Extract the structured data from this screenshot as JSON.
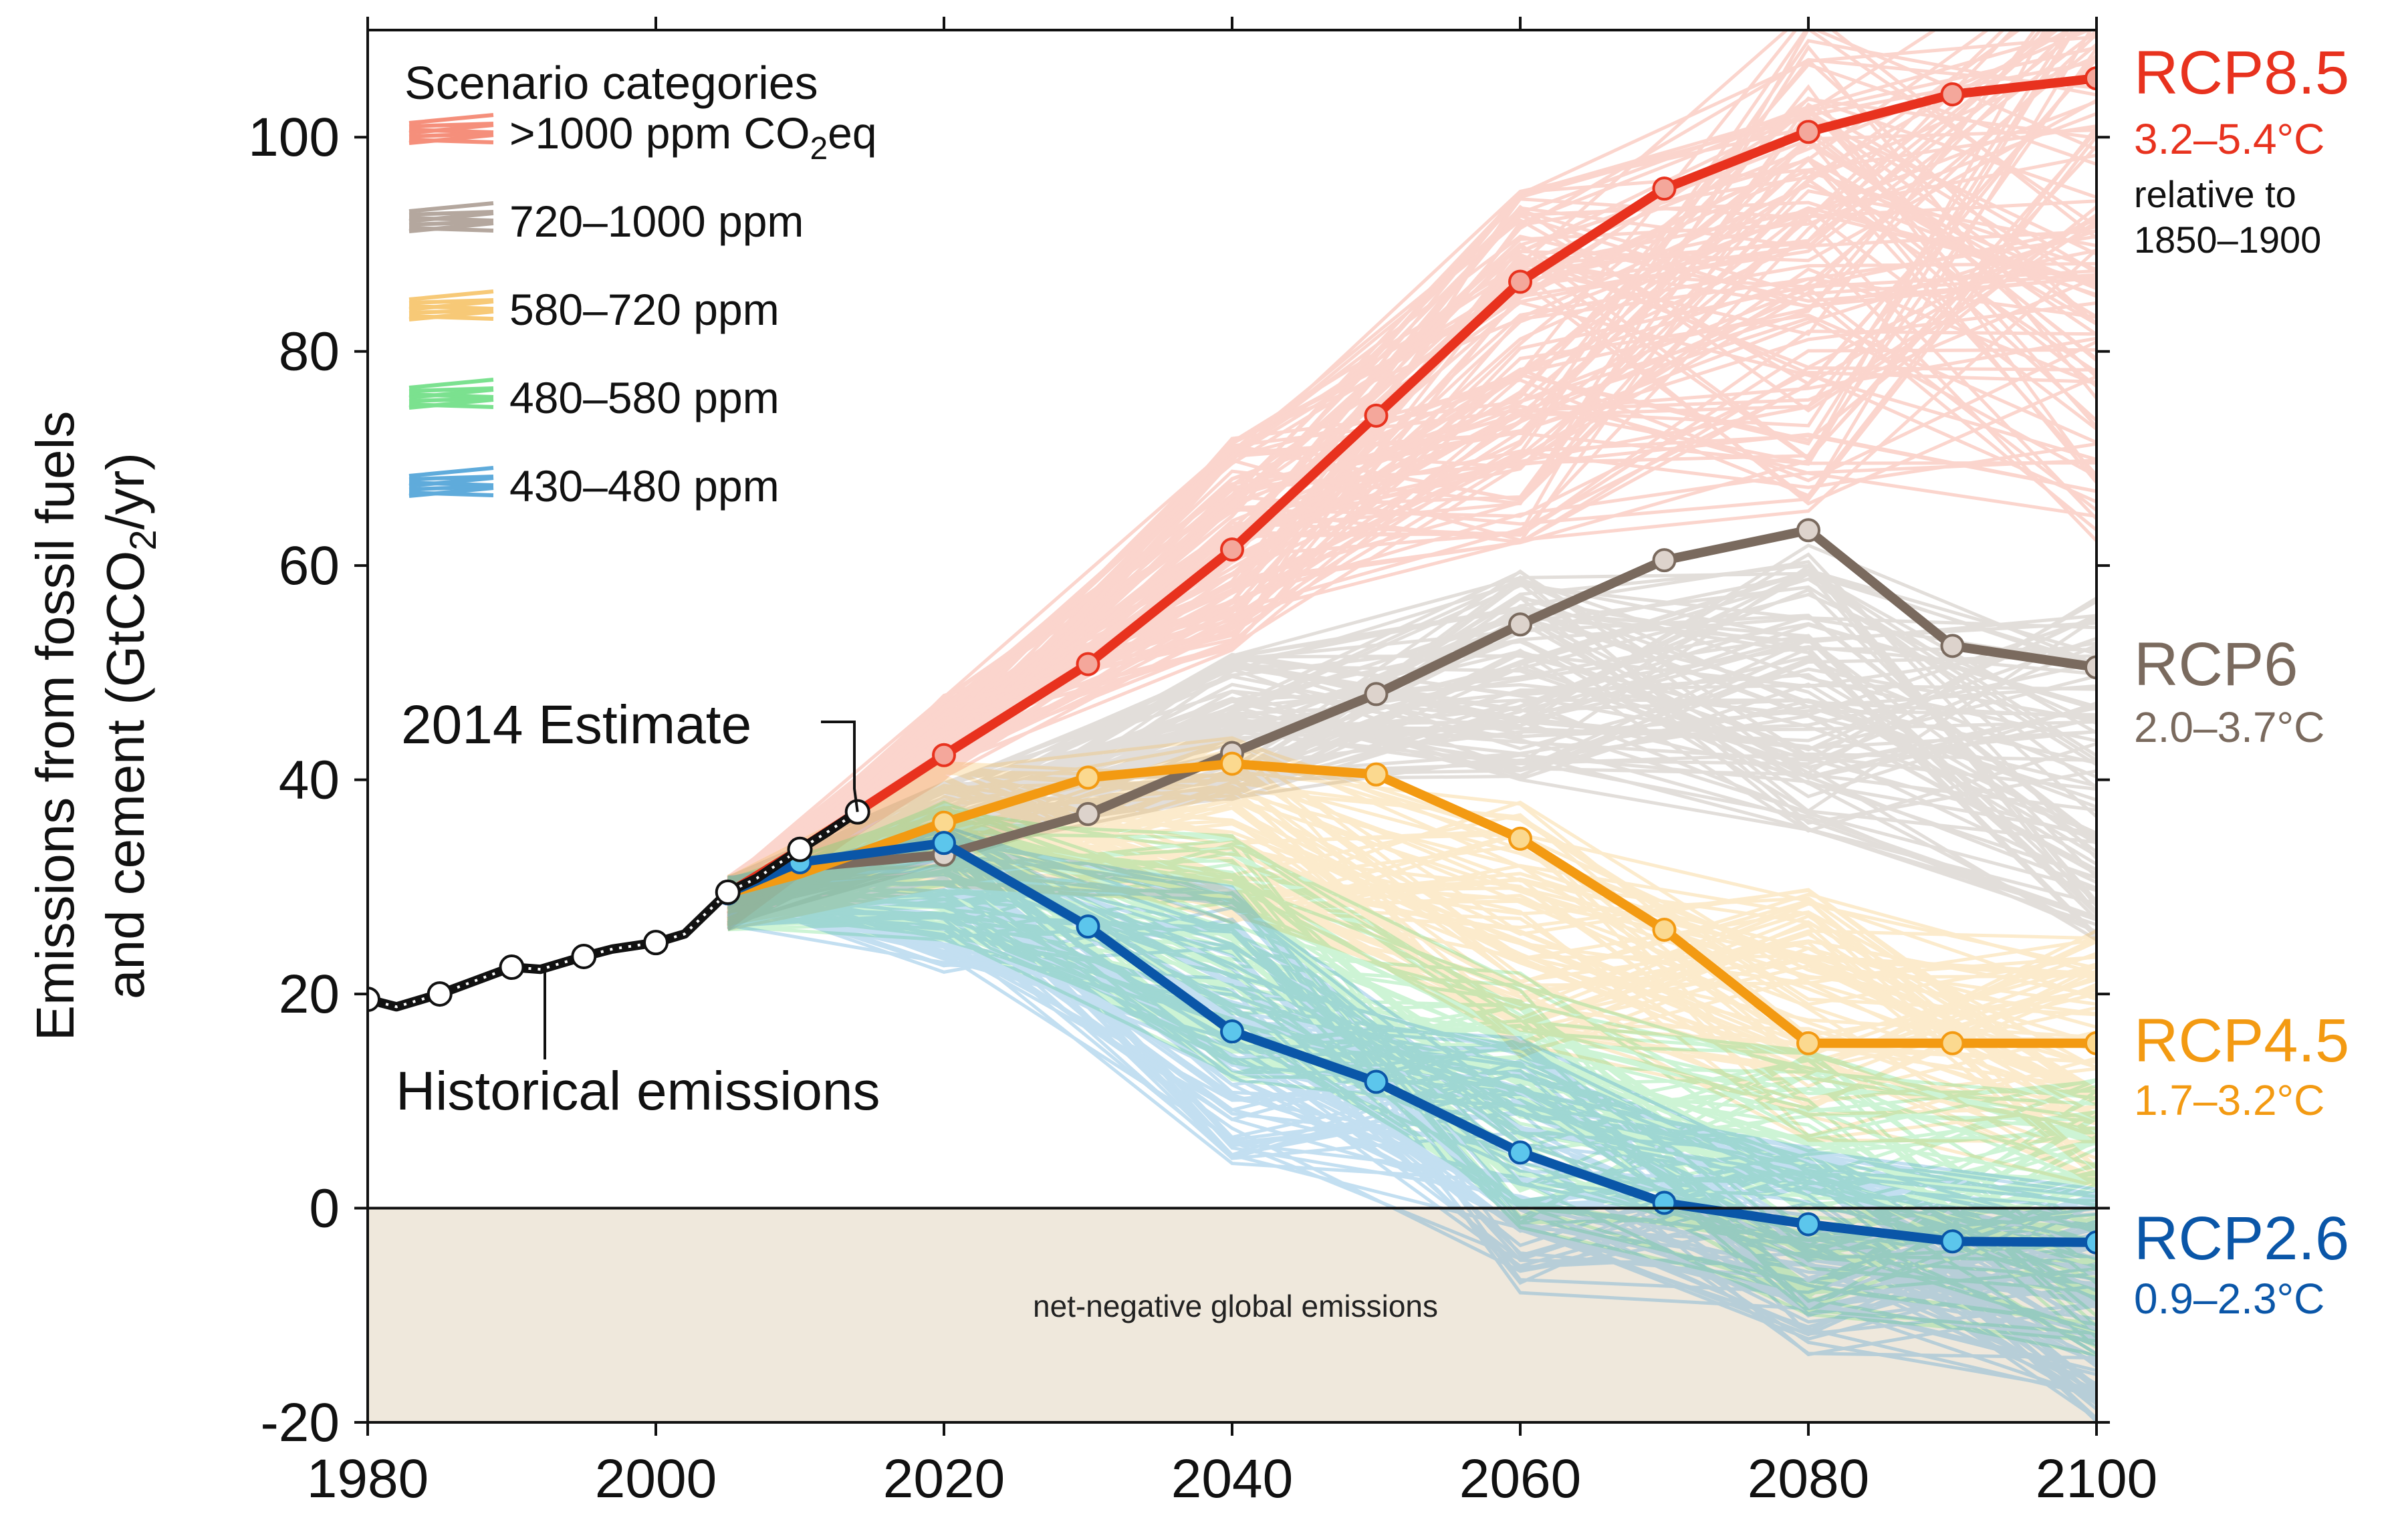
{
  "chart_data": {
    "type": "line",
    "ylabel_line1": "Emissions from fossil fuels",
    "ylabel_line2": "and cement (GtCO",
    "ylabel_sub": "2",
    "ylabel_end": "/yr)",
    "xlim": [
      1980,
      2100
    ],
    "ylim": [
      -20,
      110
    ],
    "x_ticks": [
      1980,
      2000,
      2020,
      2040,
      2060,
      2080,
      2100
    ],
    "y_ticks": [
      -20,
      0,
      20,
      40,
      60,
      80,
      100
    ],
    "grid": false,
    "legend": {
      "title": "Scenario categories",
      "placement": "top-left",
      "entries": [
        {
          "label": ">1000 ppm CO",
          "sub": "2",
          "suffix": "eq",
          "color": "#f26a50"
        },
        {
          "label": "720–1000 ppm",
          "sub": "",
          "suffix": "",
          "color": "#9b8a7e"
        },
        {
          "label": "580–720 ppm",
          "sub": "",
          "suffix": "",
          "color": "#f5b84a"
        },
        {
          "label": "480–580 ppm",
          "sub": "",
          "suffix": "",
          "color": "#4fd86a"
        },
        {
          "label": "430–480 ppm",
          "sub": "",
          "suffix": "",
          "color": "#2a8fcf"
        }
      ]
    },
    "negative_region_label": "net-negative global emissions",
    "negative_region_color": "#efe8dc",
    "historical": {
      "name": "Historical emissions",
      "label": "Historical emissions",
      "x": [
        1980,
        1982,
        1985,
        1990,
        1992,
        1995,
        1997,
        2000,
        2002,
        2005,
        2007,
        2010,
        2012,
        2014
      ],
      "y": [
        19.5,
        18.8,
        20.0,
        22.5,
        22.3,
        23.5,
        24.2,
        24.8,
        25.6,
        29.5,
        30.8,
        33.5,
        35.2,
        37.0
      ],
      "markers_x": [
        1980,
        1985,
        1990,
        1995,
        2000,
        2005,
        2010,
        2014
      ],
      "color": "#111111"
    },
    "estimate_label": "2014 Estimate",
    "series": [
      {
        "name": "RCP8.5",
        "range": "3.2–5.4°C",
        "note1": "relative to",
        "note2": "1850–1900",
        "color": "#e8321e",
        "marker_fill": "#f4a79b",
        "x": [
          2005,
          2010,
          2020,
          2030,
          2040,
          2050,
          2060,
          2070,
          2080,
          2090,
          2100
        ],
        "y": [
          29.4,
          33.5,
          42.3,
          50.8,
          61.5,
          74.0,
          86.5,
          95.2,
          100.5,
          104.0,
          105.5
        ]
      },
      {
        "name": "RCP6",
        "range": "2.0–3.7°C",
        "color": "#7a6a5e",
        "marker_fill": "#ddd3cc",
        "x": [
          2005,
          2010,
          2020,
          2030,
          2040,
          2050,
          2060,
          2070,
          2080,
          2090,
          2100
        ],
        "y": [
          29.4,
          31.8,
          33.0,
          36.8,
          42.5,
          48.0,
          54.5,
          60.5,
          63.3,
          52.5,
          50.5
        ]
      },
      {
        "name": "RCP4.5",
        "range": "1.7–3.2°C",
        "color": "#f39a12",
        "marker_fill": "#fbd98f",
        "x": [
          2005,
          2010,
          2020,
          2030,
          2040,
          2050,
          2060,
          2070,
          2080,
          2090,
          2100
        ],
        "y": [
          29.4,
          31.2,
          36.0,
          40.2,
          41.5,
          40.5,
          34.5,
          26.0,
          15.4,
          15.4,
          15.4
        ]
      },
      {
        "name": "RCP2.6",
        "range": "0.9–2.3°C",
        "color": "#0a56a8",
        "marker_fill": "#5cc6ec",
        "x": [
          2005,
          2010,
          2020,
          2030,
          2040,
          2050,
          2060,
          2070,
          2080,
          2090,
          2100
        ],
        "y": [
          29.4,
          32.3,
          34.1,
          26.3,
          16.5,
          11.8,
          5.2,
          0.5,
          -1.5,
          -3.1,
          -3.2
        ]
      }
    ]
  }
}
